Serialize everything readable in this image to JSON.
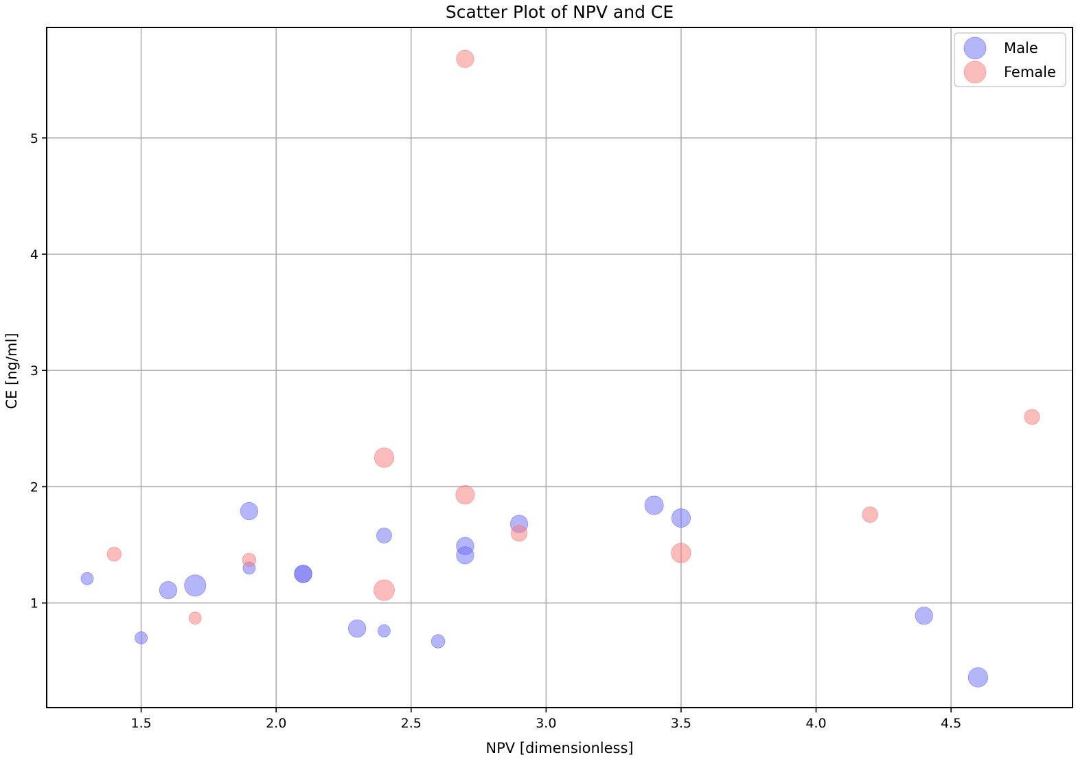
{
  "chart_data": {
    "type": "scatter",
    "title": "Scatter Plot of NPV and CE",
    "xlabel": "NPV [dimensionless]",
    "ylabel": "CE [ng/ml]",
    "xlim": [
      1.15,
      4.95
    ],
    "ylim": [
      0.1,
      5.95
    ],
    "xticks": [
      "1.5",
      "2.0",
      "2.5",
      "3.0",
      "3.5",
      "4.0",
      "4.5"
    ],
    "yticks": [
      "1",
      "2",
      "3",
      "4",
      "5"
    ],
    "grid": true,
    "legend_position": "top-right",
    "series": [
      {
        "name": "Male",
        "color": "#6b6bf5",
        "points": [
          {
            "x": 1.3,
            "y": 1.21,
            "size": 1
          },
          {
            "x": 1.5,
            "y": 0.7,
            "size": 1
          },
          {
            "x": 1.6,
            "y": 1.11,
            "size": 2
          },
          {
            "x": 1.7,
            "y": 1.15,
            "size": 3
          },
          {
            "x": 1.9,
            "y": 1.79,
            "size": 2
          },
          {
            "x": 1.9,
            "y": 1.3,
            "size": 1
          },
          {
            "x": 2.1,
            "y": 1.25,
            "size": 2
          },
          {
            "x": 2.1,
            "y": 1.25,
            "size": 2
          },
          {
            "x": 2.3,
            "y": 0.78,
            "size": 2
          },
          {
            "x": 2.4,
            "y": 1.58,
            "size": 1.5
          },
          {
            "x": 2.4,
            "y": 0.76,
            "size": 1
          },
          {
            "x": 2.6,
            "y": 0.67,
            "size": 1.2
          },
          {
            "x": 2.7,
            "y": 1.49,
            "size": 2
          },
          {
            "x": 2.7,
            "y": 1.41,
            "size": 2
          },
          {
            "x": 2.9,
            "y": 1.68,
            "size": 2
          },
          {
            "x": 3.4,
            "y": 1.84,
            "size": 2.3
          },
          {
            "x": 3.5,
            "y": 1.73,
            "size": 2.3
          },
          {
            "x": 4.4,
            "y": 0.89,
            "size": 2
          },
          {
            "x": 4.6,
            "y": 0.36,
            "size": 2.5
          }
        ]
      },
      {
        "name": "Female",
        "color": "#f77a7a",
        "points": [
          {
            "x": 1.4,
            "y": 1.42,
            "size": 1.3
          },
          {
            "x": 1.7,
            "y": 0.87,
            "size": 1
          },
          {
            "x": 1.9,
            "y": 1.37,
            "size": 1.2
          },
          {
            "x": 2.4,
            "y": 2.25,
            "size": 2.5
          },
          {
            "x": 2.4,
            "y": 1.11,
            "size": 2.8
          },
          {
            "x": 2.7,
            "y": 5.68,
            "size": 2
          },
          {
            "x": 2.7,
            "y": 1.93,
            "size": 2.3
          },
          {
            "x": 2.9,
            "y": 1.6,
            "size": 1.7
          },
          {
            "x": 3.5,
            "y": 1.43,
            "size": 2.5
          },
          {
            "x": 4.2,
            "y": 1.76,
            "size": 1.6
          },
          {
            "x": 4.8,
            "y": 2.6,
            "size": 1.5
          }
        ]
      }
    ]
  }
}
